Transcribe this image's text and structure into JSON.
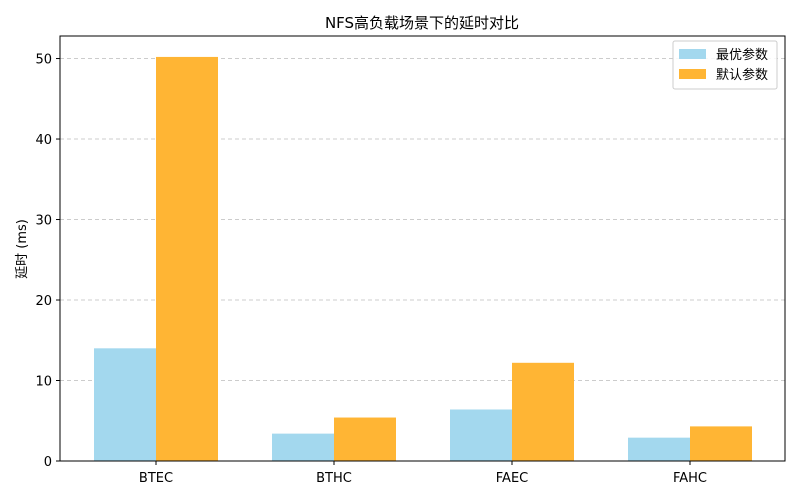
{
  "chart_data": {
    "type": "bar",
    "title": "NFS高负载场景下的延时对比",
    "xlabel": "",
    "ylabel": "延时 (ms)",
    "categories": [
      "BTEC",
      "BTHC",
      "FAEC",
      "FAHC"
    ],
    "series": [
      {
        "name": "最优参数",
        "values": [
          14.0,
          3.4,
          6.4,
          2.9
        ],
        "color": "#a3d8ee"
      },
      {
        "name": "默认参数",
        "values": [
          50.2,
          5.4,
          12.2,
          4.3
        ],
        "color": "#ffb534"
      }
    ],
    "ylim": [
      0,
      52.8
    ],
    "yticks": [
      0,
      10,
      20,
      30,
      40,
      50
    ],
    "grid": "y-dashed",
    "legend_position": "top-right"
  }
}
